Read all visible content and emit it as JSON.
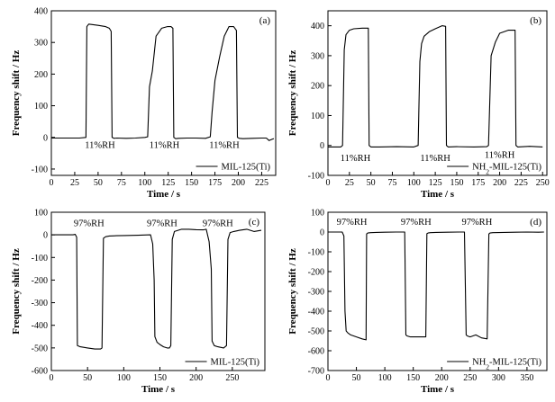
{
  "chart_data": [
    {
      "panel": "(a)",
      "type": "line",
      "xlabel": "Time / s",
      "ylabel": "Frequency shift / Hz",
      "xlim": [
        0,
        240
      ],
      "ylim": [
        -120,
        400
      ],
      "xticks": [
        0,
        25,
        50,
        75,
        100,
        125,
        150,
        175,
        200,
        225
      ],
      "yticks": [
        -100,
        0,
        100,
        200,
        300,
        400
      ],
      "legend": {
        "label": "MIL-125(Ti)",
        "sub": "",
        "tail": "",
        "position": "bottom-right"
      },
      "annotations": [
        {
          "text": "11%RH",
          "x": 52,
          "y": -22
        },
        {
          "text": "11%RH",
          "x": 121,
          "y": -22
        },
        {
          "text": "11%RH",
          "x": 185,
          "y": -22
        }
      ],
      "series": [
        {
          "x": [
            0,
            30,
            37,
            38,
            40,
            50,
            58,
            62,
            64,
            65,
            67,
            70,
            80,
            90,
            100,
            103,
            105,
            108,
            112,
            118,
            124,
            128,
            130,
            131,
            133,
            136,
            145,
            155,
            165,
            170,
            172,
            175,
            180,
            185,
            190,
            195,
            198,
            199,
            201,
            205,
            215,
            225,
            230,
            233,
            236,
            238
          ],
          "y": [
            -2,
            -2,
            0,
            350,
            358,
            354,
            350,
            345,
            335,
            0,
            -3,
            -2,
            -3,
            -2,
            0,
            2,
            160,
            210,
            320,
            345,
            350,
            350,
            345,
            0,
            -4,
            -3,
            -2,
            -2,
            -3,
            2,
            80,
            180,
            255,
            320,
            350,
            350,
            338,
            0,
            -3,
            -4,
            -3,
            -2,
            -2,
            -10,
            -6,
            -4
          ]
        }
      ]
    },
    {
      "panel": "(b)",
      "type": "line",
      "xlabel": "Time / s",
      "ylabel": "Frequency shift / Hz",
      "xlim": [
        0,
        255
      ],
      "ylim": [
        -100,
        450
      ],
      "xticks": [
        0,
        25,
        50,
        75,
        100,
        125,
        150,
        175,
        200,
        225,
        250
      ],
      "yticks": [
        -100,
        0,
        100,
        200,
        300,
        400
      ],
      "legend": {
        "label": "NH",
        "sub": "2",
        "tail": "-MIL-125(Ti)",
        "position": "bottom-right"
      },
      "annotations": [
        {
          "text": "11%RH",
          "x": 32,
          "y": -40
        },
        {
          "text": "11%RH",
          "x": 125,
          "y": -40
        },
        {
          "text": "11%RH",
          "x": 200,
          "y": -30
        }
      ],
      "series": [
        {
          "x": [
            0,
            15,
            17,
            19,
            21,
            25,
            30,
            40,
            47,
            48,
            50,
            60,
            80,
            100,
            105,
            107,
            109,
            112,
            118,
            125,
            133,
            137,
            138,
            140,
            150,
            170,
            185,
            187,
            190,
            195,
            200,
            210,
            218,
            219,
            221,
            235,
            250
          ],
          "y": [
            -5,
            -5,
            0,
            320,
            370,
            385,
            390,
            392,
            392,
            0,
            -5,
            -5,
            -4,
            -5,
            0,
            280,
            340,
            365,
            380,
            390,
            400,
            398,
            0,
            -5,
            -4,
            -5,
            -4,
            0,
            300,
            345,
            375,
            385,
            385,
            0,
            -5,
            -3,
            -5
          ]
        }
      ]
    },
    {
      "panel": "(c)",
      "type": "line",
      "xlabel": "Time / s",
      "ylabel": "Frequency shift / Hz",
      "xlim": [
        0,
        295
      ],
      "ylim": [
        -600,
        100
      ],
      "xticks": [
        0,
        50,
        100,
        150,
        200,
        250
      ],
      "yticks": [
        -600,
        -500,
        -400,
        -300,
        -200,
        -100,
        0,
        100
      ],
      "legend": {
        "label": "MIL-125(Ti)",
        "sub": "",
        "tail": "",
        "position": "bottom-right"
      },
      "annotations": [
        {
          "text": "97%RH",
          "x": 52,
          "y": 55
        },
        {
          "text": "97%RH",
          "x": 153,
          "y": 55
        },
        {
          "text": "97%RH",
          "x": 230,
          "y": 55
        }
      ],
      "series": [
        {
          "x": [
            0,
            30,
            33,
            35,
            36,
            40,
            50,
            60,
            68,
            70,
            72,
            75,
            80,
            90,
            100,
            120,
            137,
            140,
            142,
            143,
            146,
            150,
            155,
            160,
            163,
            165,
            167,
            170,
            180,
            190,
            200,
            210,
            214,
            218,
            221,
            222,
            225,
            230,
            238,
            242,
            244,
            247,
            252,
            260,
            270,
            280,
            290
          ],
          "y": [
            0,
            0,
            2,
            -10,
            -490,
            -495,
            -500,
            -505,
            -505,
            -500,
            -15,
            -8,
            -5,
            -4,
            -3,
            -2,
            0,
            -40,
            -200,
            -450,
            -475,
            -485,
            -495,
            -500,
            -500,
            -490,
            -20,
            15,
            25,
            25,
            23,
            22,
            25,
            -30,
            -150,
            -470,
            -490,
            -495,
            -500,
            -490,
            -20,
            10,
            15,
            20,
            25,
            15,
            20
          ]
        }
      ]
    },
    {
      "panel": "(d)",
      "type": "line",
      "xlabel": "Time / s",
      "ylabel": "Frequency shift / Hz",
      "xlim": [
        0,
        385
      ],
      "ylim": [
        -700,
        100
      ],
      "xticks": [
        0,
        50,
        100,
        150,
        200,
        250,
        300,
        350
      ],
      "yticks": [
        -700,
        -600,
        -500,
        -400,
        -300,
        -200,
        -100,
        0,
        100
      ],
      "legend": {
        "label": "NH",
        "sub": "2",
        "tail": "-MIL-125(Ti)",
        "position": "bottom-right"
      },
      "annotations": [
        {
          "text": "97%RH",
          "x": 42,
          "y": 55
        },
        {
          "text": "97%RH",
          "x": 155,
          "y": 55
        },
        {
          "text": "97%RH",
          "x": 262,
          "y": 55
        }
      ],
      "series": [
        {
          "x": [
            0,
            25,
            28,
            30,
            32,
            35,
            40,
            50,
            60,
            67,
            68,
            70,
            75,
            85,
            100,
            120,
            135,
            137,
            139,
            145,
            160,
            172,
            174,
            176,
            180,
            190,
            210,
            230,
            240,
            243,
            245,
            250,
            260,
            270,
            280,
            283,
            285,
            290,
            310,
            330,
            350,
            370,
            380
          ],
          "y": [
            0,
            0,
            -20,
            -400,
            -500,
            -510,
            -520,
            -530,
            -540,
            -545,
            -10,
            -5,
            -3,
            -2,
            -1,
            0,
            0,
            -520,
            -525,
            -530,
            -530,
            -530,
            -8,
            -5,
            -3,
            -2,
            -1,
            0,
            0,
            -520,
            -525,
            -530,
            -520,
            -535,
            -540,
            -10,
            -5,
            -3,
            -2,
            -1,
            0,
            -1,
            0
          ]
        }
      ]
    }
  ]
}
